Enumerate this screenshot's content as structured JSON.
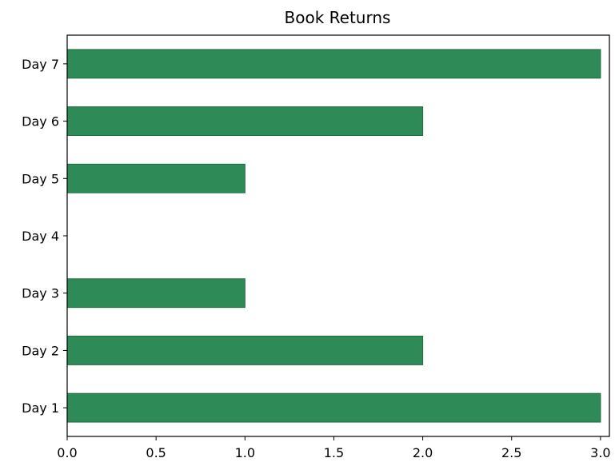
{
  "chart_data": {
    "type": "bar",
    "orientation": "horizontal",
    "title": "Book Returns",
    "xlabel": "",
    "ylabel": "",
    "categories": [
      "Day 1",
      "Day 2",
      "Day 3",
      "Day 4",
      "Day 5",
      "Day 6",
      "Day 7"
    ],
    "values": [
      3,
      2,
      1,
      0,
      1,
      2,
      3
    ],
    "xlim": [
      0,
      3.05
    ],
    "xticks": [
      "0.0",
      "0.5",
      "1.0",
      "1.5",
      "2.0",
      "2.5",
      "3.0"
    ],
    "grid": false,
    "bar_color": "#2e8b57",
    "bar_edge_color": "#1e6b3f"
  }
}
